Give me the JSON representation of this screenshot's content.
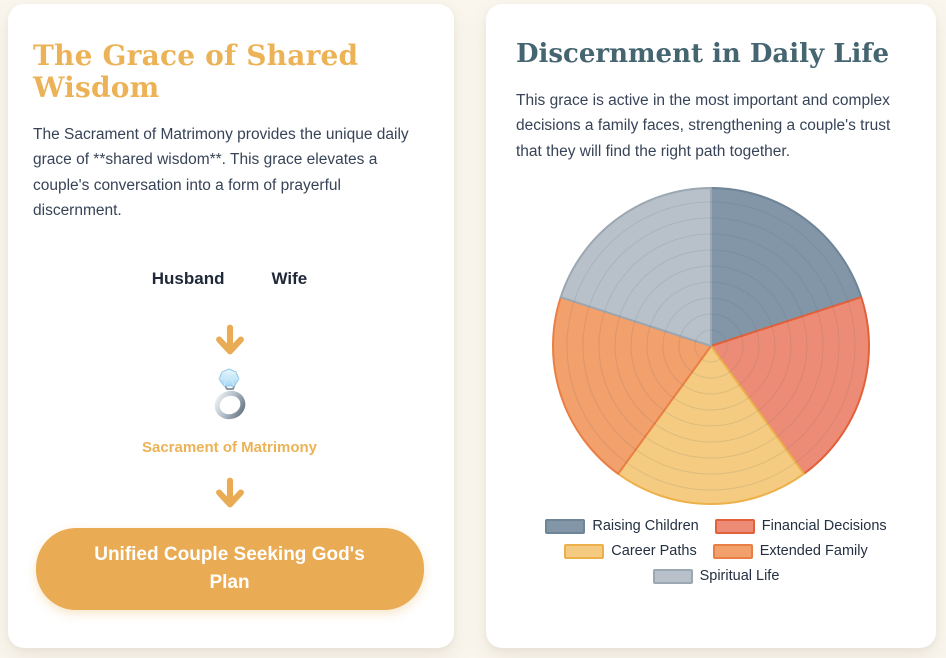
{
  "page": {
    "background_color": "#faf6ed"
  },
  "left_card": {
    "title": "The Grace of Shared Wisdom",
    "title_color": "#ecb256",
    "body": "The Sacrament of Matrimony provides the unique daily grace of **shared wisdom**. This grace elevates a couple's conversation into a form of prayerful discernment.",
    "spouse_labels": {
      "husband": "Husband",
      "wife": "Wife"
    },
    "sacrament_label": "Sacrament of Matrimony",
    "sacrament_label_color": "#ecb256",
    "result_button_label": "Unified Couple Seeking God's Plan",
    "accent_color": "#e9ab53",
    "icons": {
      "arrow": "down-arrow",
      "ring": "engagement-ring"
    }
  },
  "right_card": {
    "title": "Discernment in Daily Life",
    "title_color": "#456571",
    "body": "This grace is active in the most important and complex decisions a family faces, strengthening a couple's trust that they will find the right path together."
  },
  "chart_data": {
    "type": "pie",
    "title": "",
    "categories": [
      "Raising Children",
      "Financial Decisions",
      "Career Paths",
      "Extended Family",
      "Spiritual Life"
    ],
    "values": [
      20,
      20,
      20,
      20,
      20
    ],
    "unit": "percent",
    "colors": [
      "#8296a8",
      "#ed8c76",
      "#f4cb80",
      "#f2a06c",
      "#b8c1c9"
    ],
    "border_colors": [
      "#6e8497",
      "#e2613a",
      "#edb14b",
      "#ea7f45",
      "#9ba7b2"
    ],
    "start_angle_deg": 0,
    "direction": "clockwise",
    "legend_position": "bottom",
    "gridlines": "concentric-rings"
  }
}
